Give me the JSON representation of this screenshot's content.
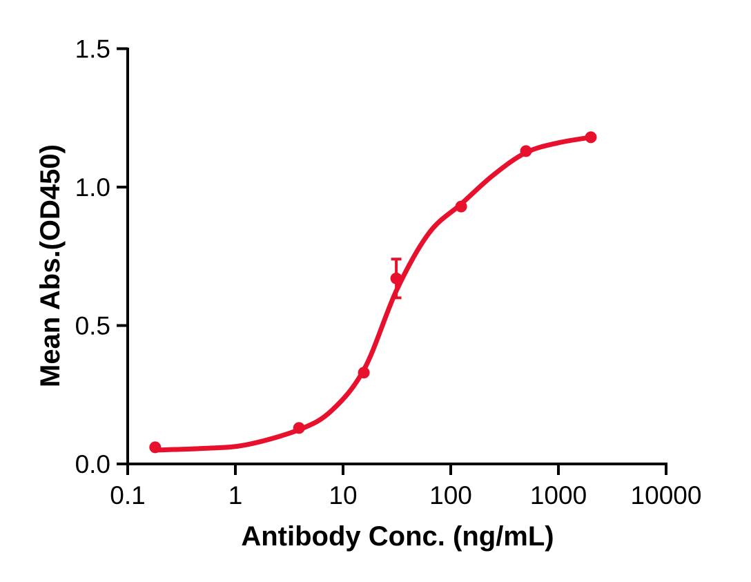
{
  "figure": {
    "background": "#ffffff"
  },
  "chart_data": {
    "type": "scatter",
    "title": "",
    "xlabel": "Antibody Conc. (ng/mL)",
    "ylabel": "Mean Abs.(OD450)",
    "x_scale": "log10",
    "xlim": [
      0.1,
      10000
    ],
    "ylim": [
      0.0,
      1.5
    ],
    "x_tick_values": [
      0.1,
      1,
      10,
      100,
      1000,
      10000
    ],
    "x_tick_labels": [
      "0.1",
      "1",
      "10",
      "100",
      "1000",
      "10000"
    ],
    "y_tick_values": [
      0.0,
      0.5,
      1.0,
      1.5
    ],
    "y_tick_labels": [
      "0.0",
      "0.5",
      "1.0",
      "1.5"
    ],
    "grid": false,
    "legend": "none",
    "colors": {
      "axis": "#000000",
      "series": "#E8112D"
    },
    "series": [
      {
        "color": "#E8112D",
        "marker": "filled-circle",
        "points": [
          {
            "x": 0.18,
            "y": 0.06
          },
          {
            "x": 3.9,
            "y": 0.13
          },
          {
            "x": 15.6,
            "y": 0.33
          },
          {
            "x": 31.2,
            "y": 0.67,
            "error_plus": 0.07,
            "error_minus": 0.07
          },
          {
            "x": 125,
            "y": 0.93
          },
          {
            "x": 500,
            "y": 1.13
          },
          {
            "x": 2000,
            "y": 1.18
          }
        ],
        "fit_type": "sigmoidal dose-response (4PL)",
        "fit_curve_anchors_log10x_y": [
          [
            -0.745,
            0.05
          ],
          [
            -0.3,
            0.056
          ],
          [
            0.1,
            0.069
          ],
          [
            0.6,
            0.125
          ],
          [
            0.9,
            0.195
          ],
          [
            1.2,
            0.345
          ],
          [
            1.5,
            0.63
          ],
          [
            1.8,
            0.835
          ],
          [
            2.1,
            0.94
          ],
          [
            2.4,
            1.045
          ],
          [
            2.7,
            1.125
          ],
          [
            3.0,
            1.16
          ],
          [
            3.301,
            1.18
          ]
        ]
      }
    ]
  }
}
